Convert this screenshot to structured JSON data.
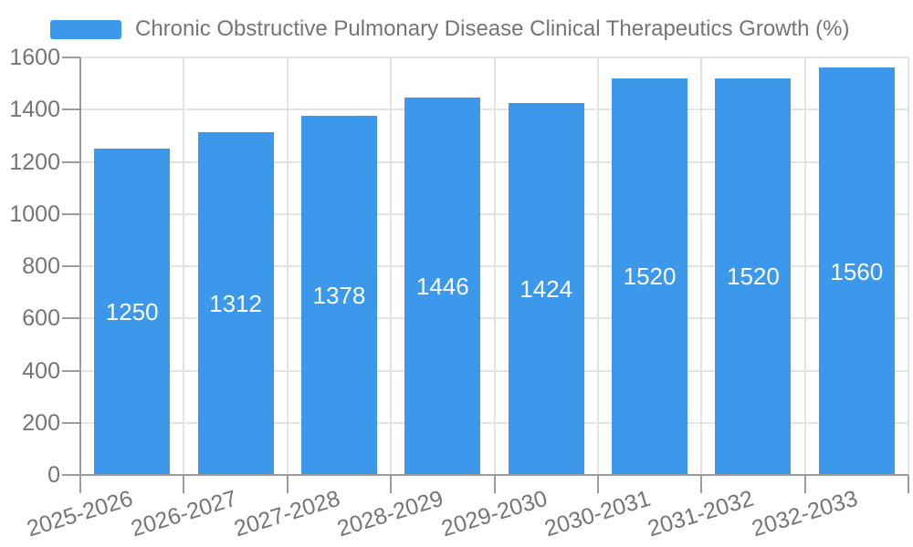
{
  "chart_data": {
    "type": "bar",
    "title": "Chronic Obstructive Pulmonary Disease Clinical Therapeutics Growth (%)",
    "categories": [
      "2025-2026",
      "2026-2027",
      "2027-2028",
      "2028-2029",
      "2029-2030",
      "2030-2031",
      "2031-2032",
      "2032-2033"
    ],
    "values": [
      1250,
      1312,
      1378,
      1446,
      1424,
      1520,
      1520,
      1560
    ],
    "xlabel": "",
    "ylabel": "",
    "ylim": [
      0,
      1600
    ],
    "ytick_step": 200,
    "grid": true,
    "legend_position": "top-left",
    "x_label_rotation_deg": -17,
    "value_labels": "inside-center",
    "colors": {
      "bar": "#3B98EB",
      "axis_text": "#757575",
      "title_text": "#757575",
      "grid_line": "#E3E3E3",
      "axis_line": "#9B9B9B",
      "value_text": "#FFFFFF",
      "background": "#FFFFFF"
    }
  }
}
